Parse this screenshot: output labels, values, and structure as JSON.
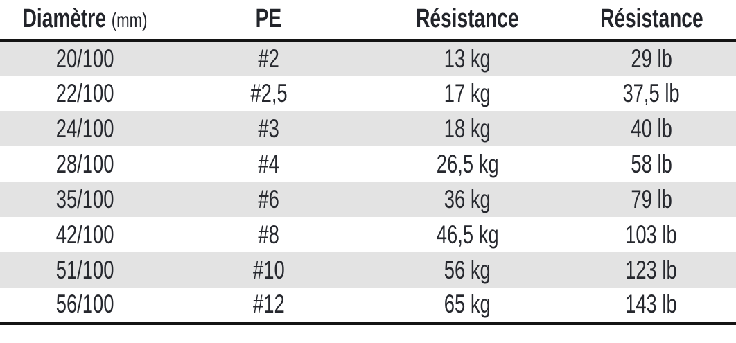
{
  "colors": {
    "row_alt_background": "#e3e3e3",
    "row_background": "#ffffff",
    "text": "#26282e",
    "rule": "#141414"
  },
  "table": {
    "columns": [
      {
        "label": "Diamètre",
        "suffix": "(mm)"
      },
      {
        "label": "PE",
        "suffix": ""
      },
      {
        "label": "Résistance",
        "suffix": ""
      },
      {
        "label": "Résistance",
        "suffix": ""
      }
    ],
    "rows": [
      {
        "diametre": "20/100",
        "pe": "#2",
        "resistance_kg": "13 kg",
        "resistance_lb": "29 lb"
      },
      {
        "diametre": "22/100",
        "pe": "#2,5",
        "resistance_kg": "17 kg",
        "resistance_lb": "37,5 lb"
      },
      {
        "diametre": "24/100",
        "pe": "#3",
        "resistance_kg": "18 kg",
        "resistance_lb": "40 lb"
      },
      {
        "diametre": "28/100",
        "pe": "#4",
        "resistance_kg": "26,5 kg",
        "resistance_lb": "58 lb"
      },
      {
        "diametre": "35/100",
        "pe": "#6",
        "resistance_kg": "36 kg",
        "resistance_lb": "79 lb"
      },
      {
        "diametre": "42/100",
        "pe": "#8",
        "resistance_kg": "46,5 kg",
        "resistance_lb": "103 lb"
      },
      {
        "diametre": "51/100",
        "pe": "#10",
        "resistance_kg": "56 kg",
        "resistance_lb": "123 lb"
      },
      {
        "diametre": "56/100",
        "pe": "#12",
        "resistance_kg": "65 kg",
        "resistance_lb": "143 lb"
      }
    ]
  }
}
